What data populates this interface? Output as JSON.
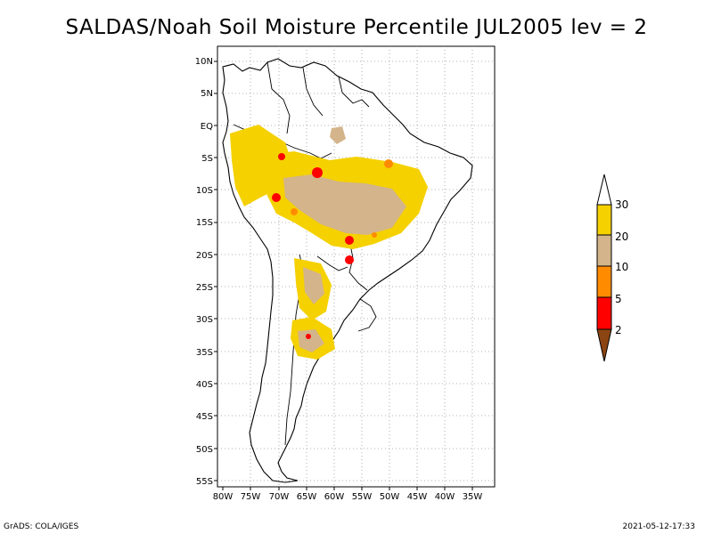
{
  "title": "SALDAS/Noah Soil Moisture Percentile JUL2005 lev = 2",
  "lat_labels": [
    "10N",
    "5N",
    "EQ",
    "5S",
    "10S",
    "15S",
    "20S",
    "25S",
    "30S",
    "35S",
    "40S",
    "45S",
    "50S",
    "55S"
  ],
  "lon_labels": [
    "80W",
    "75W",
    "70W",
    "65W",
    "60W",
    "55W",
    "50W",
    "45W",
    "40W",
    "35W"
  ],
  "colorbar": {
    "labels": [
      "30",
      "20",
      "10",
      "5",
      "2"
    ],
    "colors": [
      "#f5d100",
      "#d4b48a",
      "#ff8c00",
      "#ff0000",
      "#8b4513"
    ],
    "top_color": "#ffffff",
    "bottom_color": "#8b4513"
  },
  "credit": "GrADS: COLA/IGES",
  "timestamp": "2021-05-12-17:33"
}
